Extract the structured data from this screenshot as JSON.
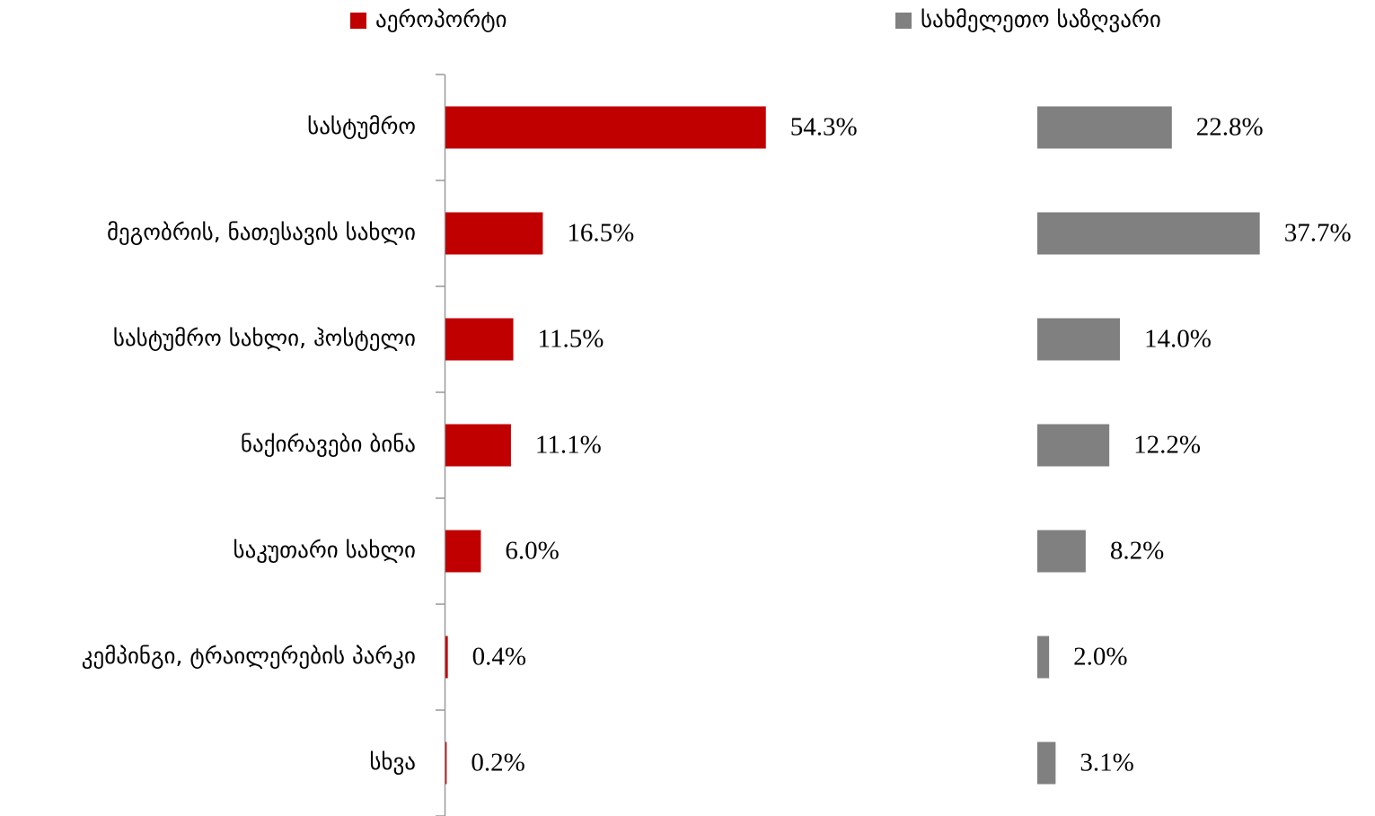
{
  "chart_data": {
    "type": "bar",
    "orientation": "horizontal",
    "categories": [
      "სასტუმრო",
      "მეგობრის, ნათესავის სახლი",
      "სასტუმრო სახლი, ჰოსტელი",
      "ნაქირავები ბინა",
      "საკუთარი სახლი",
      "კემპინგი, ტრაილერების პარკი",
      "სხვა"
    ],
    "series": [
      {
        "name": "აეროპორტი",
        "color": "#c00000",
        "values": [
          54.3,
          16.5,
          11.5,
          11.1,
          6.0,
          0.4,
          0.2
        ],
        "value_labels": [
          "54.3%",
          "16.5%",
          "11.5%",
          "11.1%",
          "6.0%",
          "0.4%",
          "0.2%"
        ]
      },
      {
        "name": "სახმელეთო საზღვარი",
        "color": "#808080",
        "values": [
          22.8,
          37.7,
          14.0,
          12.2,
          8.2,
          2.0,
          3.1
        ],
        "value_labels": [
          "22.8%",
          "37.7%",
          "14.0%",
          "12.2%",
          "8.2%",
          "2.0%",
          "3.1%"
        ]
      }
    ]
  }
}
